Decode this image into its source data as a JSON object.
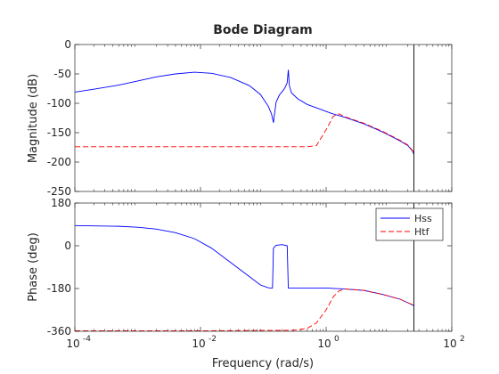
{
  "chart_data": {
    "type": "line",
    "title": "Bode Diagram",
    "xlabel": "Frequency  (rad/s)",
    "xscale": "log",
    "xlim": [
      0.0001,
      100
    ],
    "xtick_labels": [
      "10",
      "10",
      "10",
      "10"
    ],
    "xtick_exponents": [
      "-4",
      "-2",
      "0",
      "2"
    ],
    "xtick_values": [
      0.0001,
      0.01,
      1,
      100
    ],
    "vertical_marker_x": 25,
    "magnitude": {
      "ylabel": "Magnitude (dB)",
      "ylim": [
        -250,
        0
      ],
      "yticks": [
        0,
        -50,
        -100,
        -150,
        -200,
        -250
      ],
      "series": [
        {
          "name": "Hss",
          "color": "#0000ff",
          "style": "solid",
          "points": [
            [
              0.0001,
              -81
            ],
            [
              0.0002,
              -76
            ],
            [
              0.0005,
              -69
            ],
            [
              0.001,
              -62
            ],
            [
              0.002,
              -55
            ],
            [
              0.004,
              -50
            ],
            [
              0.008,
              -47
            ],
            [
              0.015,
              -49
            ],
            [
              0.03,
              -56
            ],
            [
              0.06,
              -70
            ],
            [
              0.09,
              -85
            ],
            [
              0.12,
              -105
            ],
            [
              0.135,
              -118
            ],
            [
              0.145,
              -133
            ],
            [
              0.15,
              -120
            ],
            [
              0.16,
              -98
            ],
            [
              0.18,
              -86
            ],
            [
              0.2,
              -80
            ],
            [
              0.22,
              -74
            ],
            [
              0.24,
              -65
            ],
            [
              0.25,
              -43
            ],
            [
              0.26,
              -70
            ],
            [
              0.28,
              -82
            ],
            [
              0.35,
              -92
            ],
            [
              0.5,
              -102
            ],
            [
              0.8,
              -110
            ],
            [
              1.2,
              -117
            ],
            [
              2,
              -124
            ],
            [
              4,
              -135
            ],
            [
              8,
              -149
            ],
            [
              15,
              -164
            ],
            [
              20,
              -172
            ],
            [
              24,
              -182
            ],
            [
              25,
              -187
            ]
          ]
        },
        {
          "name": "Htf",
          "color": "#ff0000",
          "style": "dashed",
          "points": [
            [
              0.0001,
              -174
            ],
            [
              0.001,
              -174
            ],
            [
              0.01,
              -174
            ],
            [
              0.1,
              -174
            ],
            [
              0.5,
              -174
            ],
            [
              0.7,
              -172
            ],
            [
              1,
              -145
            ],
            [
              1.3,
              -122
            ],
            [
              1.6,
              -118
            ],
            [
              2,
              -123
            ],
            [
              4,
              -134
            ],
            [
              8,
              -148
            ],
            [
              15,
              -163
            ],
            [
              20,
              -171
            ],
            [
              24,
              -181
            ],
            [
              25,
              -186
            ]
          ]
        }
      ]
    },
    "phase": {
      "ylabel": "Phase (deg)",
      "ylim": [
        -360,
        180
      ],
      "yticks": [
        180,
        0,
        -180,
        -360
      ],
      "legend": {
        "placement": "top-right",
        "entries": [
          "Hss",
          "Htf"
        ]
      },
      "series": [
        {
          "name": "Hss",
          "color": "#0000ff",
          "style": "solid",
          "points": [
            [
              0.0001,
              85
            ],
            [
              0.0005,
              82
            ],
            [
              0.001,
              78
            ],
            [
              0.002,
              70
            ],
            [
              0.004,
              55
            ],
            [
              0.008,
              30
            ],
            [
              0.015,
              -10
            ],
            [
              0.03,
              -70
            ],
            [
              0.06,
              -130
            ],
            [
              0.09,
              -165
            ],
            [
              0.12,
              -177
            ],
            [
              0.135,
              -178
            ],
            [
              0.14,
              -178
            ],
            [
              0.145,
              -10
            ],
            [
              0.16,
              2
            ],
            [
              0.2,
              5
            ],
            [
              0.24,
              0
            ],
            [
              0.25,
              -178
            ],
            [
              0.3,
              -178
            ],
            [
              0.5,
              -178
            ],
            [
              1,
              -178
            ],
            [
              2,
              -182
            ],
            [
              4,
              -188
            ],
            [
              8,
              -205
            ],
            [
              15,
              -225
            ],
            [
              20,
              -240
            ],
            [
              25,
              -252
            ]
          ]
        },
        {
          "name": "Htf",
          "color": "#ff0000",
          "style": "dashed",
          "points": [
            [
              0.0001,
              -358
            ],
            [
              0.01,
              -358
            ],
            [
              0.3,
              -356
            ],
            [
              0.5,
              -348
            ],
            [
              0.7,
              -325
            ],
            [
              1,
              -270
            ],
            [
              1.3,
              -215
            ],
            [
              1.6,
              -190
            ],
            [
              2,
              -182
            ],
            [
              4,
              -188
            ],
            [
              8,
              -205
            ],
            [
              15,
              -225
            ],
            [
              20,
              -240
            ],
            [
              25,
              -250
            ]
          ]
        }
      ]
    }
  }
}
